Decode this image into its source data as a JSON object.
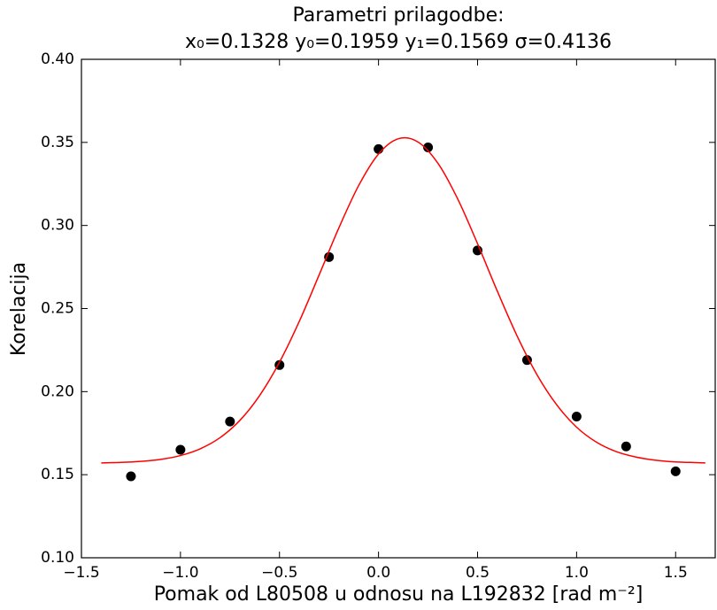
{
  "chart_data": {
    "type": "scatter",
    "title": "Parametri prilagodbe:",
    "subtitle": "x₀=0.1328 y₀=0.1959 y₁=0.1569 σ=0.4136",
    "x_label": "Pomak od L80508 u odnosu na L192832 [rad m⁻²]",
    "y_label": "Korelacija",
    "xlim": [
      -1.5,
      1.7
    ],
    "ylim": [
      0.1,
      0.4
    ],
    "xticks": [
      {
        "value": -1.5,
        "label": "−1.5"
      },
      {
        "value": -1.0,
        "label": "−1.0"
      },
      {
        "value": -0.5,
        "label": "−0.5"
      },
      {
        "value": 0,
        "label": "0.0"
      },
      {
        "value": 0.5,
        "label": "0.5"
      },
      {
        "value": 1.0,
        "label": "1.0"
      },
      {
        "value": 1.5,
        "label": "1.5"
      }
    ],
    "yticks": [
      {
        "value": 0.1,
        "label": "0.10"
      },
      0.15,
      {
        "value": 0.2,
        "label": "0.20"
      },
      0.25,
      {
        "value": 0.3,
        "label": "0.30"
      },
      0.35,
      {
        "value": 0.4,
        "label": "0.40"
      }
    ],
    "grid": false,
    "series": [
      {
        "type": "scatter",
        "color": "#000000",
        "x": [
          -1.25,
          -1.0,
          -0.75,
          -0.5,
          -0.25,
          0,
          0.25,
          0.5,
          0.75,
          1.0,
          1.25,
          1.5
        ],
        "values": [
          0.149,
          0.165,
          0.182,
          0.216,
          0.281,
          0.346,
          0.347,
          0.285,
          0.219,
          0.185,
          0.167,
          0.152
        ]
      },
      {
        "type": "line",
        "color": "#ff0000",
        "x": [
          -1.4,
          -1.3,
          -1.2,
          -1.1,
          -1.0,
          -0.9,
          -0.8,
          -0.7,
          -0.6,
          -0.5,
          -0.4,
          -0.3,
          -0.2,
          -0.1,
          0.0,
          0.1,
          0.2,
          0.3,
          0.4,
          0.5,
          0.6,
          0.7,
          0.8,
          0.9,
          1.0,
          1.1,
          1.2,
          1.3,
          1.4,
          1.5,
          1.6,
          1.65
        ],
        "values": [
          0.1571,
          0.1574,
          0.158,
          0.1592,
          0.1615,
          0.1656,
          0.1723,
          0.1827,
          0.1977,
          0.2177,
          0.2423,
          0.2702,
          0.2986,
          0.3241,
          0.343,
          0.3522,
          0.3502,
          0.3374,
          0.3159,
          0.289,
          0.2604,
          0.2334,
          0.2102,
          0.192,
          0.1786,
          0.1696,
          0.1639,
          0.1606,
          0.1587,
          0.1577,
          0.1573,
          0.1571
        ]
      }
    ]
  }
}
